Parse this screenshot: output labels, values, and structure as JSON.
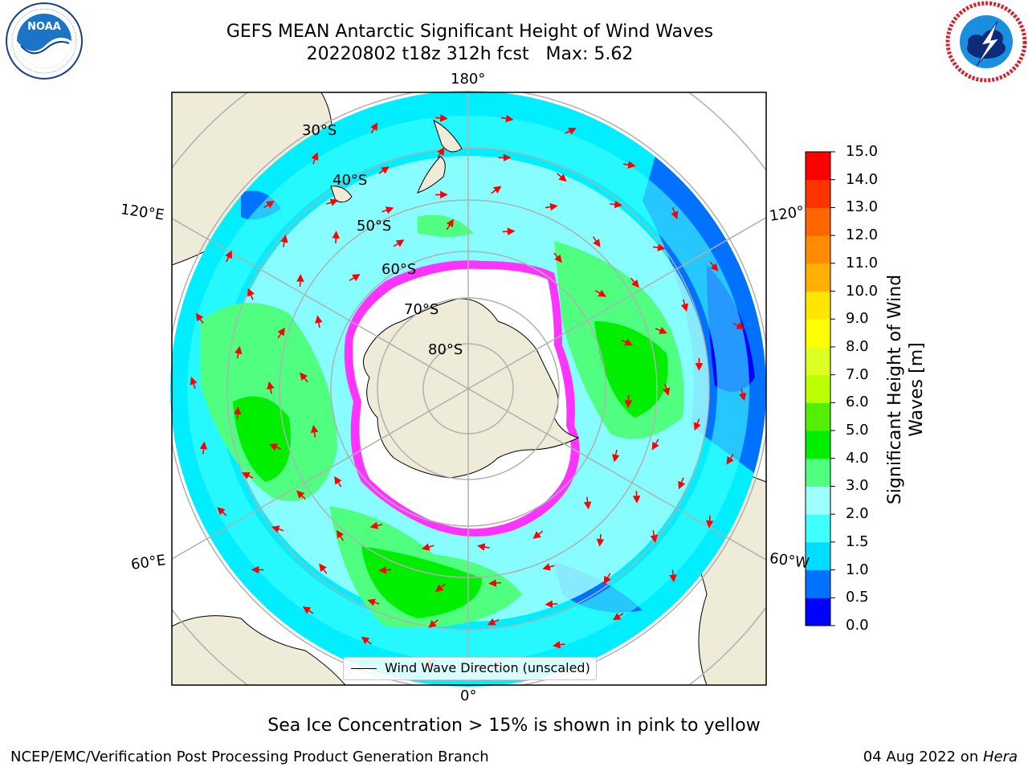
{
  "header": {
    "title_line1": "GEFS MEAN Antarctic Significant Height of Wind Waves",
    "title_line2": "20220802 t18z 312h fcst   Max: 5.62"
  },
  "logos": {
    "left": {
      "name": "noaa-logo",
      "text": "NOAA",
      "ring_text": "NATIONAL OCEANIC AND ATMOSPHERIC ADMINISTRATION · U.S. DEPARTMENT OF COMMERCE"
    },
    "right": {
      "name": "nws-logo",
      "ring_text": "NATIONAL WEATHER SERVICE"
    }
  },
  "map": {
    "projection": "south-polar-stereographic",
    "lon_labels": {
      "top": "180°",
      "bottom": "0°",
      "left_upper": "120°E",
      "left_lower": "60°E",
      "right_upper": "120°",
      "right_lower": "60°W"
    },
    "lat_labels": [
      "30°S",
      "40°S",
      "50°S",
      "60°S",
      "70°S",
      "80°S"
    ],
    "legend": {
      "label": "Wind Wave Direction (unscaled)"
    },
    "colors": {
      "land": "#eeebd8",
      "ice_edge": "#ff33ff",
      "arrows": "#ff0000",
      "grid": "#b0b0b0"
    }
  },
  "colorbar": {
    "label_line1": "Significant Height of Wind",
    "label_line2": "Waves [m]",
    "ticks": [
      "0.0",
      "0.5",
      "1.0",
      "1.5",
      "2.0",
      "3.0",
      "4.0",
      "5.0",
      "6.0",
      "7.0",
      "8.0",
      "9.0",
      "10.0",
      "11.0",
      "12.0",
      "13.0",
      "14.0",
      "15.0"
    ],
    "colors": [
      "#0000ff",
      "#0072ff",
      "#00ddff",
      "#40ffff",
      "#a0ffff",
      "#50ff80",
      "#00ee00",
      "#55ee00",
      "#bbff00",
      "#ddff22",
      "#ffff00",
      "#ffe600",
      "#ffb000",
      "#ff8c00",
      "#ff6600",
      "#ff3300",
      "#ff0000"
    ]
  },
  "notes": {
    "sea_ice": "Sea Ice Concentration > 15% is shown in pink to yellow"
  },
  "footer": {
    "left": "NCEP/EMC/Verification Post Processing Product Generation Branch",
    "right_date": "04 Aug 2022 on ",
    "right_machine": "Hera"
  }
}
